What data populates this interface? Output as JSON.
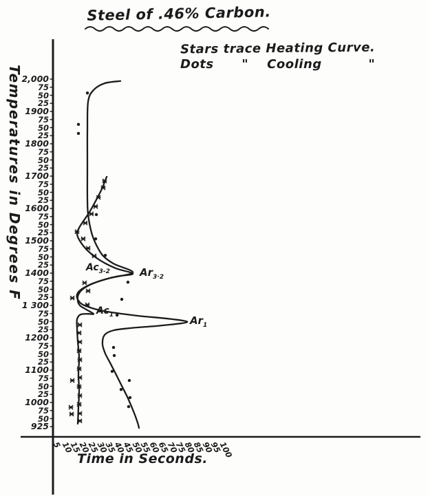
{
  "title": "Steel of .46% Carbon.",
  "legend": {
    "line1": "Stars trace Heating Curve.",
    "line2": "Dots      \"    Cooling          \""
  },
  "axes": {
    "y_label": "Temperatures in Degrees  F",
    "x_label": "Time in Seconds."
  },
  "ink_color": "#1b1b1b",
  "bg_color": "#fdfdfc",
  "chart_data": {
    "type": "line",
    "title": "Steel of .46% Carbon.",
    "xlabel": "Time in Seconds.",
    "ylabel": "Temperatures in Degrees F",
    "xlim": [
      0,
      110
    ],
    "ylim": [
      900,
      2060
    ],
    "grid": false,
    "legend_note": [
      "Stars trace Heating Curve.",
      "Dots trace Cooling Curve."
    ],
    "x_ticks": [
      5,
      10,
      15,
      20,
      25,
      30,
      35,
      40,
      45,
      50,
      55,
      60,
      65,
      70,
      75,
      80,
      85,
      90,
      95,
      100
    ],
    "y_ticks": [
      {
        "v": 2000,
        "l": "2,000"
      },
      {
        "v": 1975,
        "l": "75"
      },
      {
        "v": 1950,
        "l": "50"
      },
      {
        "v": 1925,
        "l": "25"
      },
      {
        "v": 1900,
        "l": "1900"
      },
      {
        "v": 1875,
        "l": "75"
      },
      {
        "v": 1850,
        "l": "50"
      },
      {
        "v": 1825,
        "l": "25"
      },
      {
        "v": 1800,
        "l": "1800"
      },
      {
        "v": 1775,
        "l": "75"
      },
      {
        "v": 1750,
        "l": "50"
      },
      {
        "v": 1725,
        "l": "25"
      },
      {
        "v": 1700,
        "l": "1700"
      },
      {
        "v": 1675,
        "l": "75"
      },
      {
        "v": 1650,
        "l": "50"
      },
      {
        "v": 1625,
        "l": "25"
      },
      {
        "v": 1600,
        "l": "1600"
      },
      {
        "v": 1575,
        "l": "75"
      },
      {
        "v": 1550,
        "l": "50"
      },
      {
        "v": 1525,
        "l": "25"
      },
      {
        "v": 1500,
        "l": "1500"
      },
      {
        "v": 1475,
        "l": "75"
      },
      {
        "v": 1450,
        "l": "50"
      },
      {
        "v": 1425,
        "l": "25"
      },
      {
        "v": 1400,
        "l": "1400"
      },
      {
        "v": 1375,
        "l": "75"
      },
      {
        "v": 1350,
        "l": "50"
      },
      {
        "v": 1325,
        "l": "25"
      },
      {
        "v": 1300,
        "l": "1 300"
      },
      {
        "v": 1275,
        "l": "75"
      },
      {
        "v": 1250,
        "l": "50"
      },
      {
        "v": 1225,
        "l": "25"
      },
      {
        "v": 1200,
        "l": "1200"
      },
      {
        "v": 1175,
        "l": "75"
      },
      {
        "v": 1150,
        "l": "50"
      },
      {
        "v": 1125,
        "l": "25"
      },
      {
        "v": 1100,
        "l": "1100"
      },
      {
        "v": 1075,
        "l": "75"
      },
      {
        "v": 1050,
        "l": "50"
      },
      {
        "v": 1025,
        "l": "25"
      },
      {
        "v": 1000,
        "l": "1000"
      },
      {
        "v": 975,
        "l": "75"
      },
      {
        "v": 950,
        "l": "50"
      },
      {
        "v": 925,
        "l": "925"
      }
    ],
    "arrest_labels": [
      {
        "main": "Ac",
        "sub": "3-2",
        "t": 19.6,
        "T": 1415
      },
      {
        "main": "Ar",
        "sub": "3·2",
        "t": 50.2,
        "T": 1402
      },
      {
        "main": "Ac",
        "sub": "1",
        "t": 25.5,
        "T": 1281
      },
      {
        "main": "Ar",
        "sub": "1",
        "t": 78.8,
        "T": 1253
      }
    ],
    "series": [
      {
        "name": "Cooling Curve",
        "marker": "dot",
        "curve": [
          [
            39.2,
            1994
          ],
          [
            30.2,
            1987
          ],
          [
            23.9,
            1966
          ],
          [
            20.8,
            1930
          ],
          [
            20.4,
            1840
          ],
          [
            20.4,
            1734
          ],
          [
            20.4,
            1628
          ],
          [
            20.8,
            1581
          ],
          [
            22.7,
            1526
          ],
          [
            25.5,
            1487
          ],
          [
            29.4,
            1453
          ],
          [
            35.7,
            1428
          ],
          [
            46.3,
            1402
          ],
          [
            33.3,
            1385
          ],
          [
            23.5,
            1368
          ],
          [
            17.3,
            1351
          ],
          [
            14.5,
            1334
          ],
          [
            15.3,
            1315
          ],
          [
            18.8,
            1300
          ],
          [
            29.4,
            1283
          ],
          [
            49.0,
            1268
          ],
          [
            64.7,
            1260
          ],
          [
            77.3,
            1249
          ],
          [
            62.7,
            1238
          ],
          [
            45.1,
            1230
          ],
          [
            35.3,
            1223
          ],
          [
            30.2,
            1209
          ],
          [
            29.0,
            1181
          ],
          [
            30.6,
            1151
          ],
          [
            33.3,
            1123
          ],
          [
            36.5,
            1089
          ],
          [
            40.0,
            1051
          ],
          [
            43.5,
            1013
          ],
          [
            46.7,
            972
          ],
          [
            49.0,
            938
          ],
          [
            49.8,
            921
          ]
        ],
        "points": [
          [
            20.4,
            1957
          ],
          [
            15.3,
            1860
          ],
          [
            15.3,
            1832
          ],
          [
            25.5,
            1581
          ],
          [
            25.1,
            1506
          ],
          [
            30.6,
            1455
          ],
          [
            43.5,
            1372
          ],
          [
            40.0,
            1319
          ],
          [
            37.3,
            1270
          ],
          [
            35.3,
            1170
          ],
          [
            35.7,
            1145
          ],
          [
            34.5,
            1096
          ],
          [
            44.3,
            1068
          ],
          [
            39.6,
            1040
          ],
          [
            44.7,
            1015
          ],
          [
            43.9,
            987
          ]
        ]
      },
      {
        "name": "Heating Curve",
        "marker": "star",
        "curve": [
          [
            14.9,
            934
          ],
          [
            15.3,
            985
          ],
          [
            15.7,
            1036
          ],
          [
            15.3,
            1087
          ],
          [
            15.7,
            1138
          ],
          [
            14.9,
            1189
          ],
          [
            14.5,
            1228
          ],
          [
            14.5,
            1257
          ],
          [
            16.5,
            1272
          ],
          [
            20.8,
            1274
          ],
          [
            23.9,
            1274
          ],
          [
            19.2,
            1289
          ],
          [
            16.1,
            1300
          ],
          [
            14.9,
            1315
          ],
          [
            15.3,
            1334
          ],
          [
            18.4,
            1353
          ],
          [
            25.5,
            1372
          ],
          [
            36.5,
            1389
          ],
          [
            46.3,
            1398
          ],
          [
            36.5,
            1415
          ],
          [
            27.5,
            1440
          ],
          [
            20.8,
            1468
          ],
          [
            16.5,
            1496
          ],
          [
            14.5,
            1521
          ],
          [
            15.7,
            1540
          ],
          [
            18.0,
            1560
          ],
          [
            21.6,
            1589
          ],
          [
            25.1,
            1623
          ],
          [
            28.6,
            1660
          ],
          [
            30.6,
            1687
          ],
          [
            31.4,
            1698
          ]
        ],
        "points": [
          [
            30.2,
            1685
          ],
          [
            29.4,
            1664
          ],
          [
            26.7,
            1634
          ],
          [
            25.1,
            1606
          ],
          [
            22.7,
            1583
          ],
          [
            19.2,
            1555
          ],
          [
            14.5,
            1528
          ],
          [
            18.0,
            1506
          ],
          [
            20.8,
            1477
          ],
          [
            24.3,
            1453
          ],
          [
            18.8,
            1370
          ],
          [
            20.8,
            1345
          ],
          [
            11.8,
            1323
          ],
          [
            20.4,
            1302
          ],
          [
            16.1,
            1240
          ],
          [
            15.7,
            1215
          ],
          [
            16.1,
            1187
          ],
          [
            15.7,
            1160
          ],
          [
            16.1,
            1132
          ],
          [
            15.7,
            1104
          ],
          [
            16.1,
            1077
          ],
          [
            15.7,
            1049
          ],
          [
            16.1,
            1021
          ],
          [
            15.7,
            994
          ],
          [
            16.1,
            966
          ],
          [
            16.1,
            943
          ],
          [
            11.8,
            1068
          ],
          [
            11.0,
            985
          ],
          [
            11.4,
            964
          ]
        ]
      }
    ]
  }
}
